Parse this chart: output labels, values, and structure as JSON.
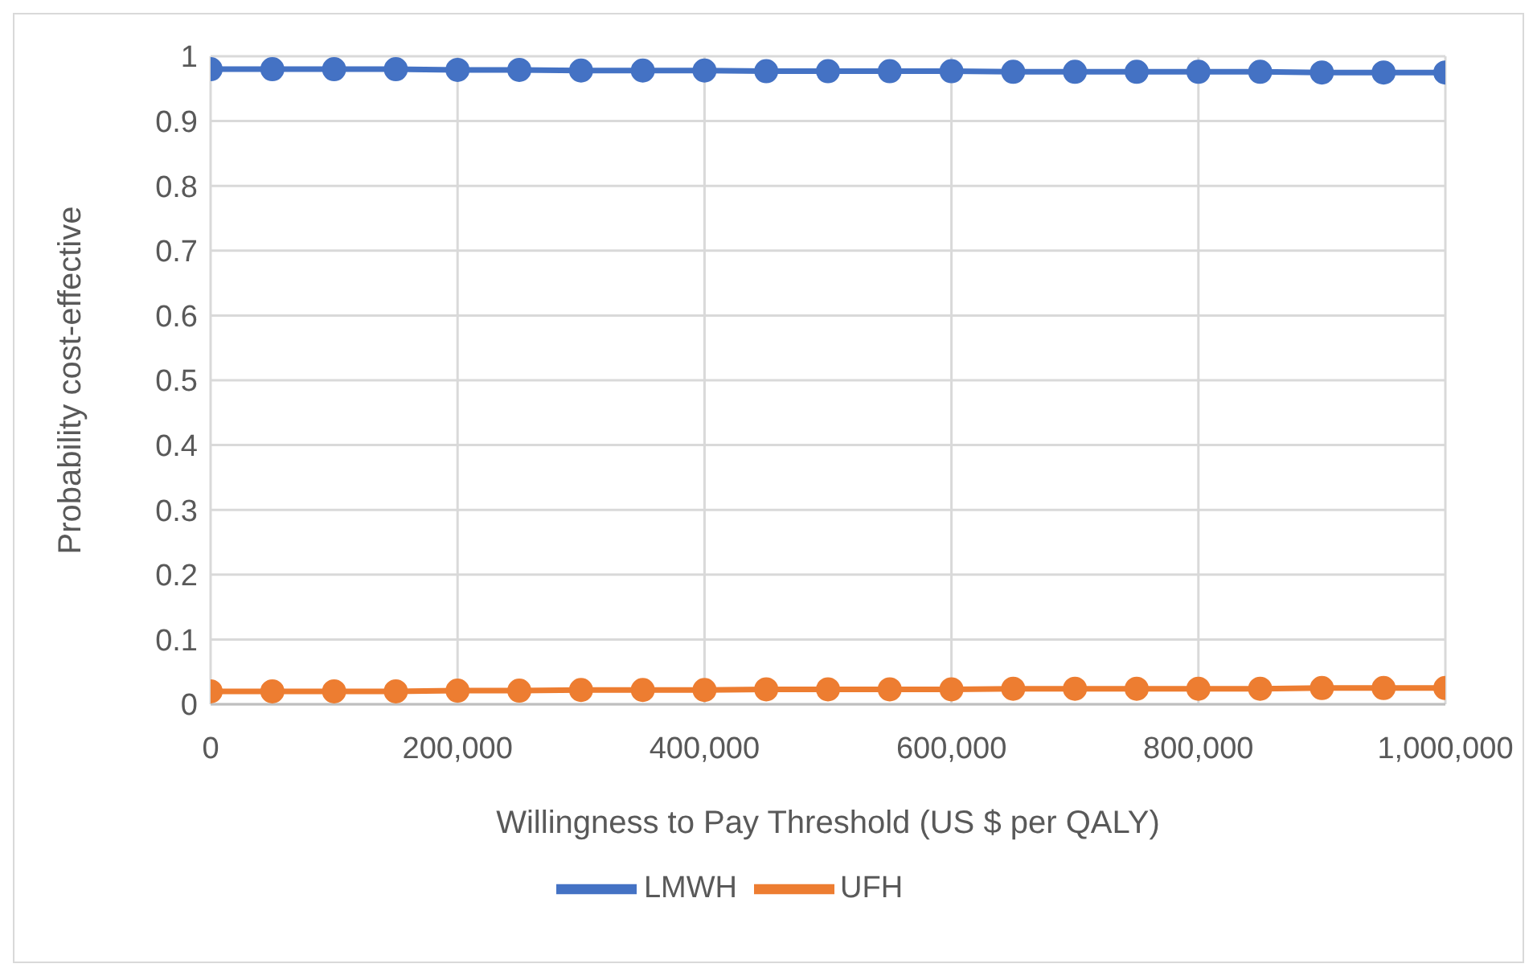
{
  "chart_data": {
    "type": "line",
    "xlabel": "Willingness to Pay Threshold (US $ per QALY)",
    "ylabel": "Probability cost-effective",
    "x": [
      0,
      50000,
      100000,
      150000,
      200000,
      250000,
      300000,
      350000,
      400000,
      450000,
      500000,
      550000,
      600000,
      650000,
      700000,
      750000,
      800000,
      850000,
      900000,
      950000,
      1000000
    ],
    "series": [
      {
        "name": "LMWH",
        "color": "#4472c4",
        "values": [
          0.98,
          0.98,
          0.98,
          0.98,
          0.979,
          0.979,
          0.978,
          0.978,
          0.978,
          0.977,
          0.977,
          0.977,
          0.977,
          0.976,
          0.976,
          0.976,
          0.976,
          0.976,
          0.975,
          0.975,
          0.975
        ]
      },
      {
        "name": "UFH",
        "color": "#ed7d31",
        "values": [
          0.02,
          0.02,
          0.02,
          0.02,
          0.021,
          0.021,
          0.022,
          0.022,
          0.022,
          0.023,
          0.023,
          0.023,
          0.023,
          0.024,
          0.024,
          0.024,
          0.024,
          0.024,
          0.025,
          0.025,
          0.025
        ]
      }
    ],
    "xlim": [
      0,
      1000000
    ],
    "xticks": [
      0,
      {
        "value": 200000,
        "label": "200,000"
      },
      {
        "value": 400000,
        "label": "400,000"
      },
      {
        "value": 600000,
        "label": "600,000"
      },
      {
        "value": 800000,
        "label": "800,000"
      },
      {
        "value": 1000000,
        "label": "1,000,000"
      }
    ],
    "ylim": [
      0,
      1
    ],
    "yticks": [
      0,
      0.1,
      0.2,
      0.3,
      0.4,
      0.5,
      0.6,
      0.7,
      0.8,
      0.9,
      1
    ],
    "grid": true,
    "legend": "bottom",
    "marker": "circle",
    "line_style": "solid"
  }
}
